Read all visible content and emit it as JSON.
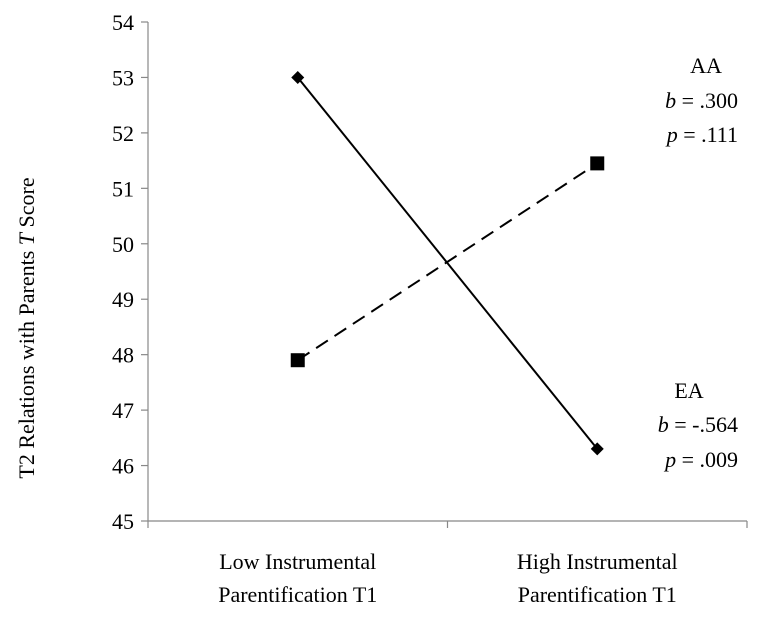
{
  "chart_data": {
    "type": "line",
    "ylabel": {
      "before": "T2 Relations with Parents ",
      "italic": "T",
      "after": " Score"
    },
    "xlabel": "",
    "categories": [
      [
        "Low Instrumental",
        "Parentification T1"
      ],
      [
        "High Instrumental",
        "Parentification T1"
      ]
    ],
    "ylim": [
      45,
      54
    ],
    "yticks": [
      45,
      46,
      47,
      48,
      49,
      50,
      51,
      52,
      53,
      54
    ],
    "grid": false,
    "series": [
      {
        "values": [
          53.0,
          46.3
        ],
        "line_style": "solid",
        "marker": "diamond",
        "color": "#000000"
      },
      {
        "values": [
          47.9,
          51.45
        ],
        "line_style": "dashed",
        "marker": "square",
        "color": "#000000"
      }
    ],
    "annotations": [
      {
        "group": "AA",
        "b_label": "b",
        "b_value": " = .300",
        "p_label": "p",
        "p_value": " = .111"
      },
      {
        "group": "EA",
        "b_label": "b",
        "b_value": " = -.564",
        "p_label": "p",
        "p_value": " = .009"
      }
    ]
  }
}
